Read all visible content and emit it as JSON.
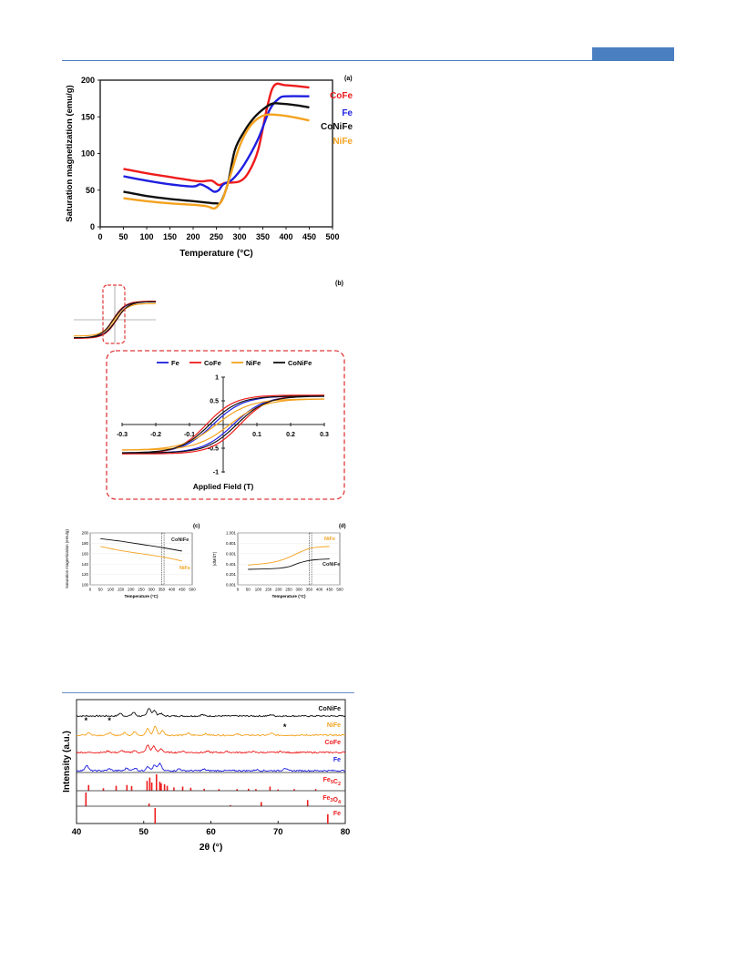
{
  "panels": {
    "a": {
      "label": "(a)"
    },
    "b": {
      "label": "(b)"
    },
    "c": {
      "label": "(c)"
    },
    "d": {
      "label": "(d)"
    }
  },
  "colors": {
    "Fe": "#1f1fe0",
    "CoFe": "#ee1c1c",
    "NiFe": "#f4a21f",
    "CoNiFe": "#111111",
    "frame": "#e0393a",
    "header": "#4a7fc1"
  },
  "chart_data": [
    {
      "id": "a",
      "type": "line",
      "xlabel": "Temperature (°C)",
      "ylabel": "Saturation magnetization (emu/g)",
      "xlim": [
        0,
        500
      ],
      "ylim": [
        0,
        200
      ],
      "xticks": [
        0,
        50,
        100,
        150,
        200,
        250,
        300,
        350,
        400,
        450,
        500
      ],
      "yticks": [
        0,
        50,
        100,
        150,
        200
      ],
      "series": [
        {
          "name": "CoFe",
          "x": [
            50,
            100,
            150,
            200,
            220,
            240,
            255,
            270,
            300,
            320,
            340,
            360,
            375,
            400,
            450
          ],
          "values": [
            79,
            73,
            68,
            63,
            62,
            63,
            57,
            60,
            62,
            75,
            105,
            165,
            193,
            193,
            190
          ]
        },
        {
          "name": "Fe",
          "x": [
            50,
            100,
            150,
            200,
            215,
            230,
            245,
            255,
            265,
            285,
            310,
            340,
            365,
            385,
            400,
            450
          ],
          "values": [
            69,
            63,
            58,
            55,
            58,
            54,
            48,
            50,
            58,
            65,
            85,
            120,
            160,
            175,
            178,
            178
          ]
        },
        {
          "name": "CoNiFe",
          "x": [
            50,
            100,
            150,
            200,
            230,
            250,
            260,
            275,
            290,
            310,
            330,
            350,
            370,
            390,
            420,
            450
          ],
          "values": [
            48,
            42,
            38,
            35,
            33,
            32,
            34,
            60,
            105,
            130,
            148,
            160,
            168,
            168,
            166,
            163
          ]
        },
        {
          "name": "NiFe",
          "x": [
            50,
            100,
            150,
            200,
            230,
            245,
            255,
            265,
            280,
            300,
            320,
            340,
            360,
            390,
            420,
            450
          ],
          "values": [
            39,
            35,
            32,
            30,
            28,
            25,
            30,
            40,
            70,
            110,
            135,
            148,
            153,
            152,
            149,
            145
          ]
        }
      ]
    },
    {
      "id": "b",
      "type": "line",
      "xlabel": "Applied Field (T)",
      "ylabel": "",
      "xlim": [
        -0.3,
        0.3
      ],
      "ylim": [
        -1,
        1
      ],
      "xticks": [
        "-0.3",
        "-0.2",
        "-0.1",
        "0.1",
        "0.2",
        "0.3"
      ],
      "yticks": [
        "1",
        "0.5",
        "-0.5",
        "-1"
      ],
      "legend": [
        "Fe",
        "CoFe",
        "NiFe",
        "CoNiFe"
      ],
      "series": [
        {
          "name": "Fe",
          "ms": 0.6,
          "hc": 0.03,
          "k": 0.09
        },
        {
          "name": "CoFe",
          "ms": 0.62,
          "hc": 0.05,
          "k": 0.085
        },
        {
          "name": "NiFe",
          "ms": 0.54,
          "hc": 0.02,
          "k": 0.1
        },
        {
          "name": "CoNiFe",
          "ms": 0.6,
          "hc": 0.04,
          "k": 0.088
        }
      ]
    },
    {
      "id": "c",
      "type": "line",
      "xlabel": "Temperature (°C)",
      "ylabel": "Saturation magnetization (emu/g)",
      "xlim": [
        0,
        500
      ],
      "ylim": [
        100,
        200
      ],
      "xticks": [
        0,
        50,
        100,
        150,
        200,
        250,
        300,
        350,
        400,
        450,
        500
      ],
      "yticks": [
        100,
        120,
        140,
        160,
        180,
        200
      ],
      "series": [
        {
          "name": "CoNiFe",
          "x": [
            50,
            150,
            250,
            350,
            450
          ],
          "values": [
            189,
            184,
            178,
            172,
            165
          ]
        },
        {
          "name": "NiFe",
          "x": [
            50,
            150,
            250,
            350,
            450
          ],
          "values": [
            174,
            166,
            160,
            154,
            146
          ]
        }
      ],
      "annotation": {
        "x_range": [
          350,
          362
        ]
      }
    },
    {
      "id": "d",
      "type": "line",
      "xlabel": "Temperature (°C)",
      "ylabel": "|dM/dT|",
      "xlim": [
        0,
        500
      ],
      "ylim": [
        "0.001",
        "1.001"
      ],
      "xticks": [
        0,
        50,
        100,
        150,
        200,
        250,
        300,
        350,
        400,
        450,
        500
      ],
      "yticks": [
        "0.001",
        "0.201",
        "0.401",
        "0.601",
        "0.801",
        "1.001"
      ],
      "series": [
        {
          "name": "NiFe",
          "x": [
            50,
            150,
            200,
            250,
            300,
            350,
            400,
            450
          ],
          "values": [
            0.38,
            0.42,
            0.46,
            0.53,
            0.62,
            0.7,
            0.73,
            0.74
          ]
        },
        {
          "name": "CoNiFe",
          "x": [
            50,
            150,
            200,
            250,
            300,
            350,
            400,
            450
          ],
          "values": [
            0.3,
            0.31,
            0.32,
            0.35,
            0.42,
            0.47,
            0.49,
            0.5
          ]
        }
      ],
      "annotation": {
        "x_range": [
          350,
          362
        ]
      }
    },
    {
      "id": "xrd",
      "type": "line",
      "xlabel": "2θ (°)",
      "ylabel": "Intensity (a.u.)",
      "xlim": [
        40,
        80
      ],
      "xticks": [
        40,
        50,
        60,
        70,
        80
      ],
      "series": [
        {
          "name": "CoNiFe"
        },
        {
          "name": "NiFe"
        },
        {
          "name": "CoFe"
        },
        {
          "name": "Fe"
        }
      ],
      "references": [
        {
          "name": "Fe5C2",
          "label_main": "Fe",
          "sub1": "5",
          "mid": "C",
          "sub2": "2",
          "peaks": [
            41.8,
            44.0,
            45.9,
            47.5,
            48.2,
            50.5,
            50.9,
            51.2,
            51.9,
            52.4,
            52.6,
            53.1,
            53.5,
            54.5,
            55.8,
            57.0,
            59.0,
            61.2,
            63.9,
            65.6,
            66.7,
            68.8,
            70.0,
            72.4,
            75.6
          ],
          "heights": [
            0.35,
            0.15,
            0.3,
            0.35,
            0.28,
            0.6,
            0.8,
            0.5,
            1.0,
            0.55,
            0.45,
            0.4,
            0.3,
            0.2,
            0.25,
            0.18,
            0.12,
            0.1,
            0.1,
            0.12,
            0.1,
            0.25,
            0.08,
            0.1,
            0.1
          ]
        },
        {
          "name": "Fe3O4",
          "label_main": "Fe",
          "sub1": "3",
          "mid": "O",
          "sub2": "4",
          "peaks": [
            41.4,
            50.8,
            62.9,
            67.5,
            74.4
          ],
          "heights": [
            1.0,
            0.2,
            0.08,
            0.3,
            0.45
          ]
        },
        {
          "name": "Fe",
          "label_main": "Fe",
          "sub1": "",
          "mid": "",
          "sub2": "",
          "peaks": [
            51.7,
            77.4
          ],
          "heights": [
            1.0,
            0.6
          ]
        }
      ],
      "markers": [
        {
          "label": "*",
          "x": 41.4
        },
        {
          "label": "*",
          "x": 44.9
        },
        {
          "label": "*",
          "x": 71.0
        }
      ]
    }
  ]
}
